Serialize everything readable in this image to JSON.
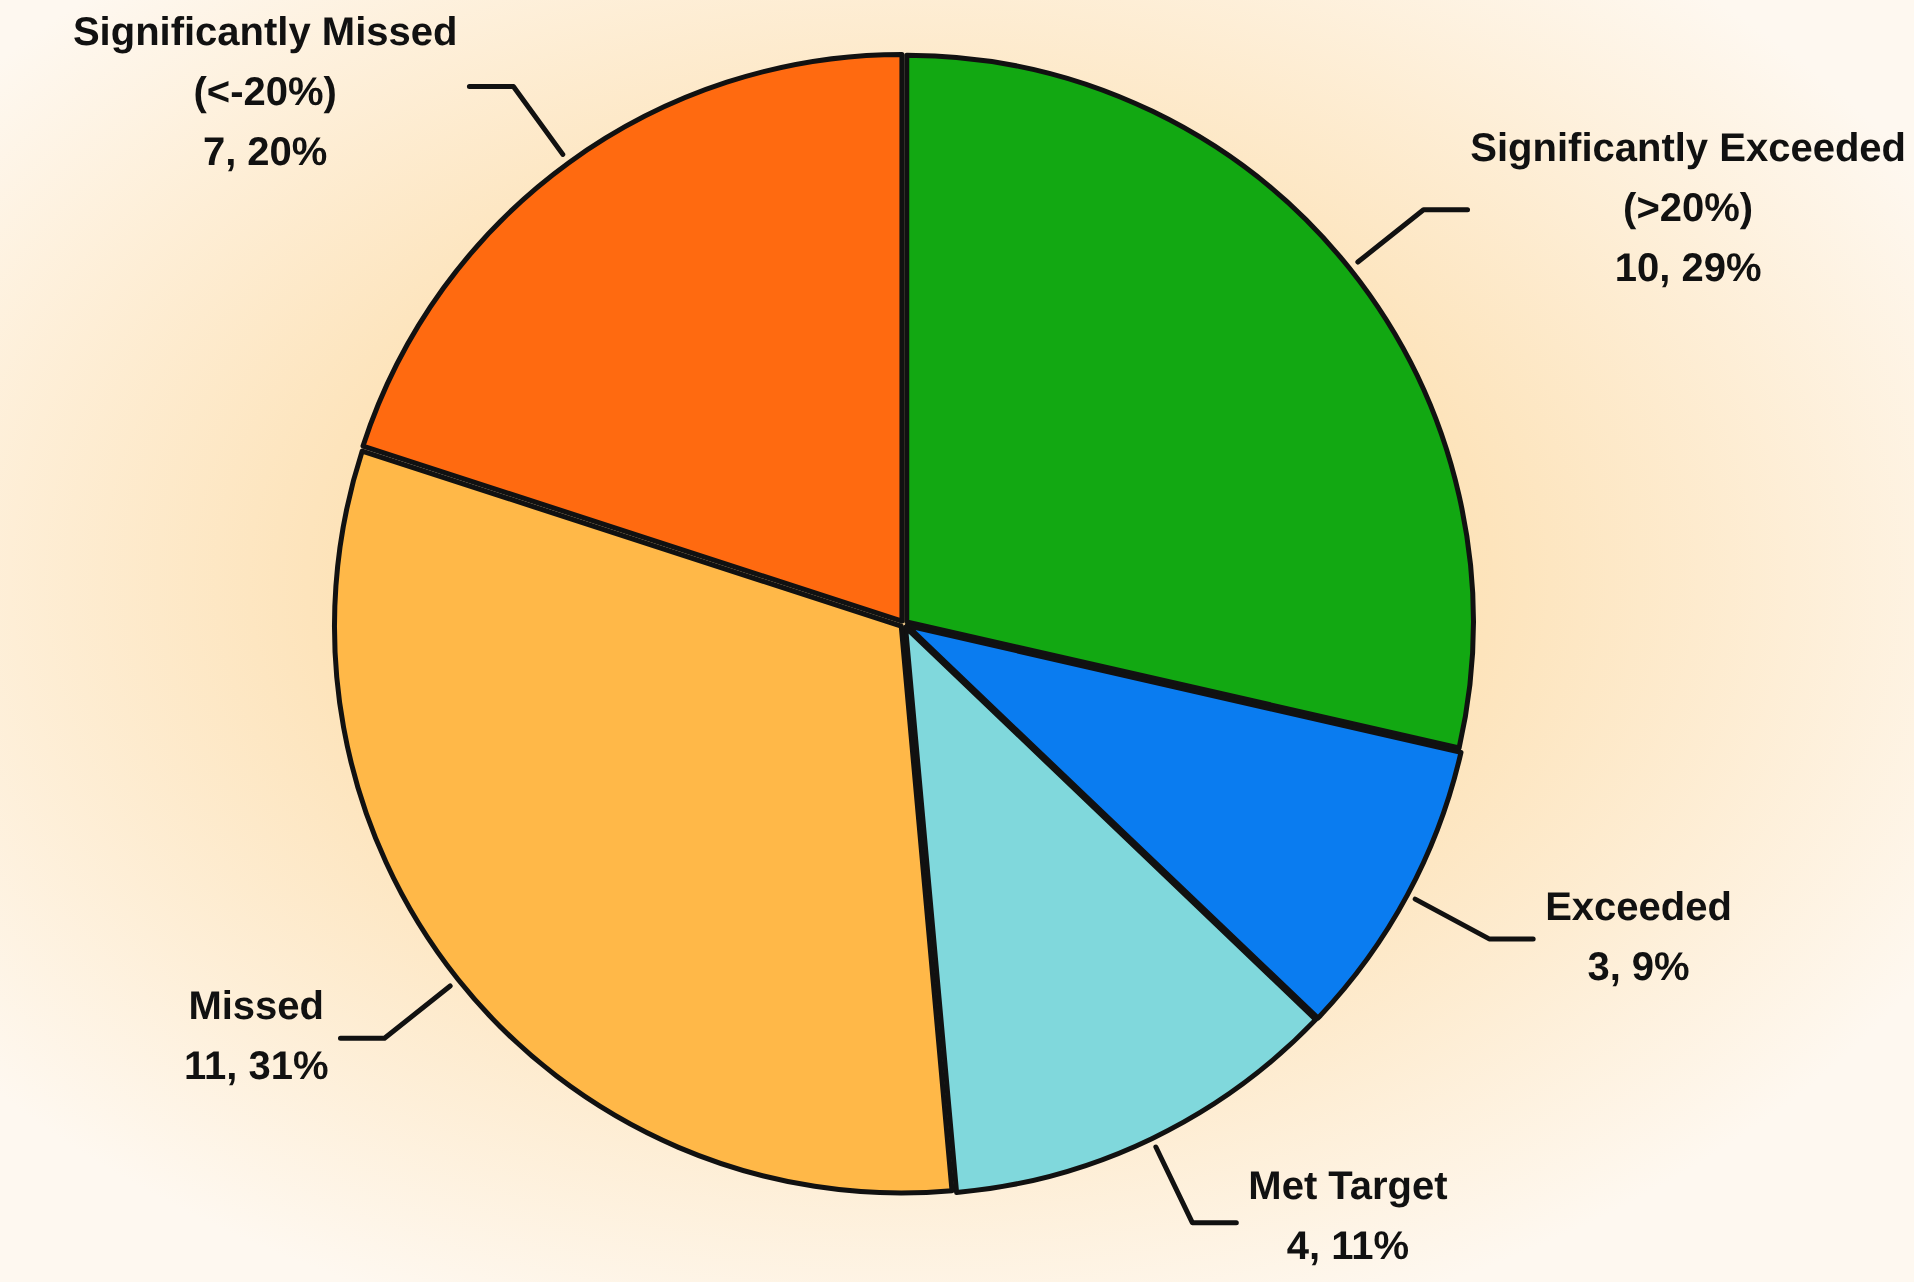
{
  "chart_data": {
    "type": "pie",
    "categories": [
      "Significantly Exceeded (>20%)",
      "Exceeded",
      "Met Target",
      "Missed",
      "Significantly Missed (<-20%)"
    ],
    "values": [
      10,
      3,
      4,
      11,
      7
    ],
    "value_labels": [
      "10, 29%",
      "3, 9%",
      "4, 11%",
      "11, 31%",
      "7, 20%"
    ],
    "colors": [
      "#12a812",
      "#0a7cf0",
      "#80d8dc",
      "#ffb848",
      "#ff6a10"
    ]
  }
}
